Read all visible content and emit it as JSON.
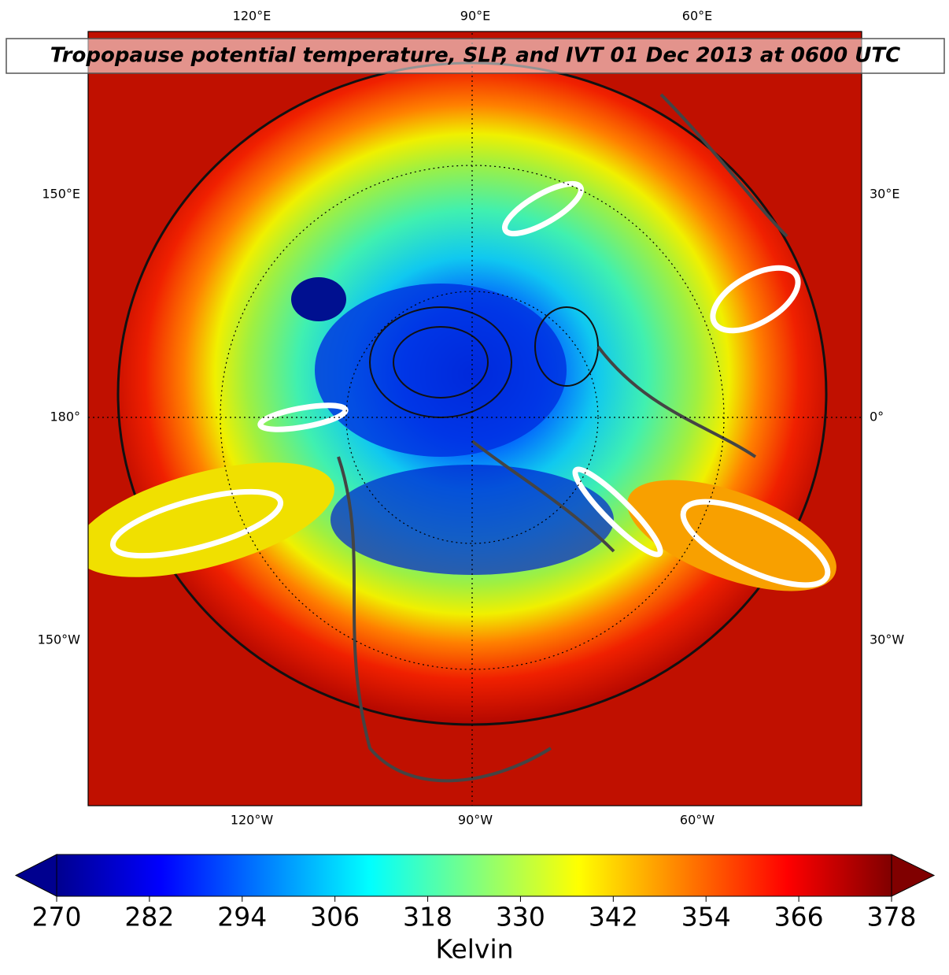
{
  "title": "Tropopause potential temperature, SLP, and IVT 01 Dec 2013 at 0600 UTC",
  "map": {
    "top_labels": [
      "120°E",
      "90°E",
      "60°E"
    ],
    "bottom_labels": [
      "120°W",
      "90°W",
      "60°W"
    ],
    "left_labels": [
      "150°E",
      "180°",
      "150°W"
    ],
    "right_labels": [
      "30°E",
      "0°",
      "30°W"
    ]
  },
  "colorbar": {
    "colormap": "jet",
    "lim": [
      270,
      378
    ],
    "ticks": [
      270,
      282,
      294,
      306,
      318,
      330,
      342,
      354,
      366,
      378
    ],
    "label": "Kelvin",
    "extend": "both"
  }
}
